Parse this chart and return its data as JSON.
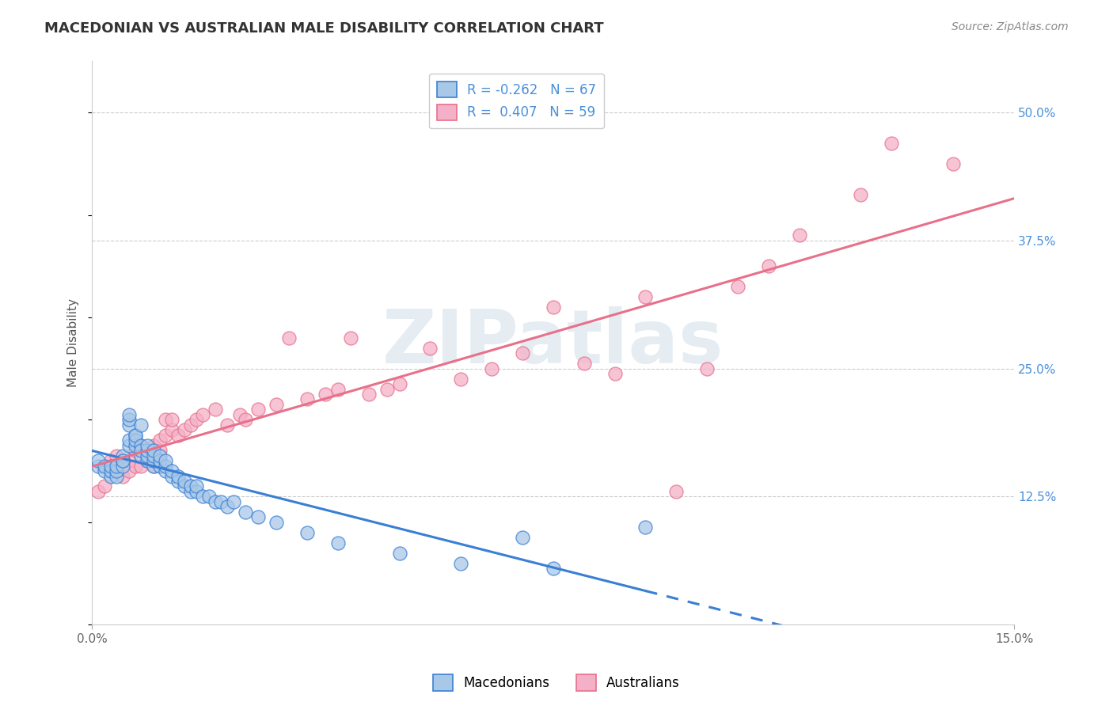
{
  "title": "MACEDONIAN VS AUSTRALIAN MALE DISABILITY CORRELATION CHART",
  "source": "Source: ZipAtlas.com",
  "ylabel": "Male Disability",
  "xlim": [
    0.0,
    0.15
  ],
  "ylim": [
    0.0,
    0.55
  ],
  "legend_r_blue": "-0.262",
  "legend_n_blue": "67",
  "legend_r_pink": "0.407",
  "legend_n_pink": "59",
  "macedonian_color": "#a8c8e8",
  "australian_color": "#f4b0c8",
  "macedonian_line_color": "#3a7fd5",
  "australian_line_color": "#e8708a",
  "watermark_text": "ZIPatlas",
  "background_color": "#ffffff",
  "grid_color": "#cccccc",
  "macedonians_x": [
    0.001,
    0.001,
    0.002,
    0.002,
    0.003,
    0.003,
    0.003,
    0.004,
    0.004,
    0.004,
    0.005,
    0.005,
    0.005,
    0.005,
    0.006,
    0.006,
    0.006,
    0.006,
    0.006,
    0.007,
    0.007,
    0.007,
    0.007,
    0.008,
    0.008,
    0.008,
    0.008,
    0.009,
    0.009,
    0.009,
    0.009,
    0.01,
    0.01,
    0.01,
    0.01,
    0.011,
    0.011,
    0.011,
    0.012,
    0.012,
    0.012,
    0.013,
    0.013,
    0.014,
    0.014,
    0.015,
    0.015,
    0.016,
    0.016,
    0.017,
    0.017,
    0.018,
    0.019,
    0.02,
    0.021,
    0.022,
    0.023,
    0.025,
    0.027,
    0.03,
    0.035,
    0.04,
    0.05,
    0.06,
    0.07,
    0.075,
    0.09
  ],
  "macedonians_y": [
    0.155,
    0.16,
    0.15,
    0.155,
    0.145,
    0.15,
    0.155,
    0.145,
    0.15,
    0.155,
    0.16,
    0.165,
    0.155,
    0.16,
    0.195,
    0.2,
    0.205,
    0.175,
    0.18,
    0.185,
    0.175,
    0.18,
    0.185,
    0.175,
    0.195,
    0.165,
    0.17,
    0.16,
    0.165,
    0.17,
    0.175,
    0.155,
    0.16,
    0.165,
    0.17,
    0.155,
    0.16,
    0.165,
    0.15,
    0.155,
    0.16,
    0.145,
    0.15,
    0.14,
    0.145,
    0.135,
    0.14,
    0.13,
    0.135,
    0.13,
    0.135,
    0.125,
    0.125,
    0.12,
    0.12,
    0.115,
    0.12,
    0.11,
    0.105,
    0.1,
    0.09,
    0.08,
    0.07,
    0.06,
    0.085,
    0.055,
    0.095
  ],
  "australians_x": [
    0.001,
    0.002,
    0.003,
    0.003,
    0.004,
    0.004,
    0.005,
    0.005,
    0.006,
    0.006,
    0.007,
    0.007,
    0.008,
    0.008,
    0.009,
    0.009,
    0.01,
    0.01,
    0.011,
    0.011,
    0.012,
    0.012,
    0.013,
    0.013,
    0.014,
    0.015,
    0.016,
    0.017,
    0.018,
    0.02,
    0.022,
    0.024,
    0.025,
    0.027,
    0.03,
    0.032,
    0.035,
    0.038,
    0.04,
    0.042,
    0.045,
    0.048,
    0.05,
    0.055,
    0.06,
    0.065,
    0.07,
    0.075,
    0.08,
    0.085,
    0.09,
    0.095,
    0.1,
    0.105,
    0.11,
    0.115,
    0.125,
    0.13,
    0.14
  ],
  "australians_y": [
    0.13,
    0.135,
    0.15,
    0.16,
    0.155,
    0.165,
    0.145,
    0.16,
    0.15,
    0.16,
    0.155,
    0.17,
    0.155,
    0.175,
    0.16,
    0.165,
    0.155,
    0.175,
    0.17,
    0.18,
    0.185,
    0.2,
    0.19,
    0.2,
    0.185,
    0.19,
    0.195,
    0.2,
    0.205,
    0.21,
    0.195,
    0.205,
    0.2,
    0.21,
    0.215,
    0.28,
    0.22,
    0.225,
    0.23,
    0.28,
    0.225,
    0.23,
    0.235,
    0.27,
    0.24,
    0.25,
    0.265,
    0.31,
    0.255,
    0.245,
    0.32,
    0.13,
    0.25,
    0.33,
    0.35,
    0.38,
    0.42,
    0.47,
    0.45
  ],
  "ytick_right_positions": [
    0.5,
    0.375,
    0.25,
    0.125
  ],
  "ytick_right_labels": [
    "50.0%",
    "37.5%",
    "25.0%",
    "12.5%"
  ]
}
